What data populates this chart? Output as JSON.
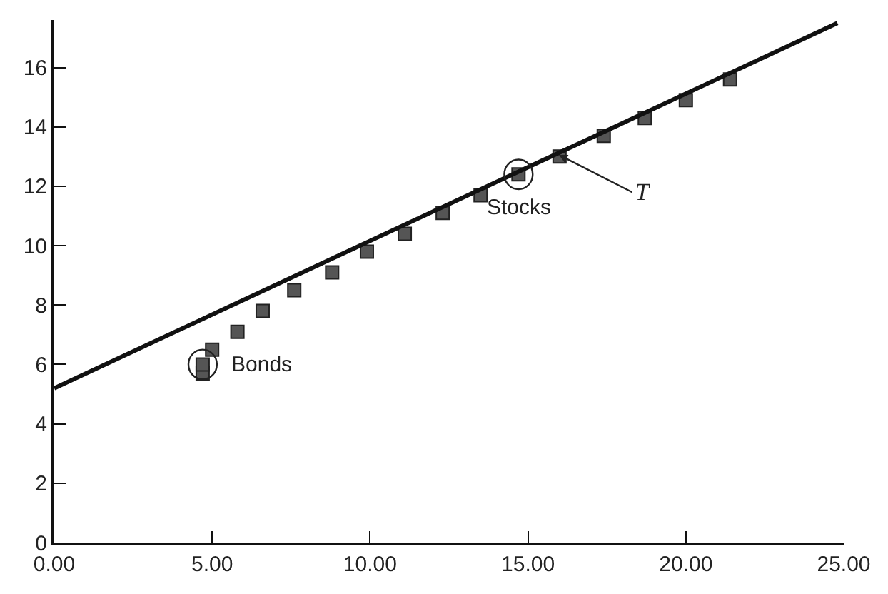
{
  "chart_data": {
    "type": "scatter",
    "marker": "square",
    "xlim": [
      0,
      25
    ],
    "ylim": [
      0,
      17.6
    ],
    "xticks": [
      {
        "value": 0,
        "label": "0.00"
      },
      {
        "value": 5,
        "label": "5.00"
      },
      {
        "value": 10,
        "label": "10.00"
      },
      {
        "value": 15,
        "label": "15.00"
      },
      {
        "value": 20,
        "label": "20.00"
      },
      {
        "value": 25,
        "label": "25.00"
      }
    ],
    "yticks": [
      0,
      2,
      4,
      6,
      8,
      10,
      12,
      14,
      16
    ],
    "series": [
      {
        "color": "#555555",
        "x": [
          4.7,
          4.7,
          5.0,
          5.8,
          6.6,
          7.6,
          8.8,
          9.9,
          11.1,
          12.3,
          13.5,
          14.7,
          16.0,
          17.4,
          18.7,
          20.0,
          21.4
        ],
        "values": [
          5.7,
          6.0,
          6.5,
          7.1,
          7.8,
          8.5,
          9.1,
          9.8,
          10.4,
          11.1,
          11.7,
          12.4,
          13.0,
          13.7,
          14.3,
          14.9,
          15.6
        ]
      },
      {
        "type": "line",
        "color": "#111111",
        "marker": "none",
        "x": [
          0,
          24.8
        ],
        "values": [
          5.2,
          17.5
        ]
      }
    ],
    "annotations": [
      {
        "text": "Bonds",
        "x": 4.7,
        "y": 6.0
      },
      {
        "text": "Stocks",
        "x": 14.7,
        "y": 12.4
      },
      {
        "text": "T",
        "x": 15.9,
        "y": 13.1
      }
    ]
  }
}
